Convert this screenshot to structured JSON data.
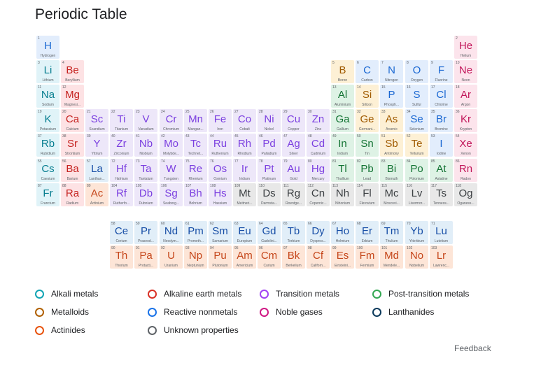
{
  "title": "Periodic Table",
  "feedback": "Feedback",
  "categories": {
    "alkali": {
      "label": "Alkali metals",
      "bg": "#e0f3f8",
      "text": "#067d8f",
      "ring": "#12a4b4"
    },
    "alkaline": {
      "label": "Alkaline earth metals",
      "bg": "#fde2e4",
      "text": "#c5221f",
      "ring": "#d93025"
    },
    "transition": {
      "label": "Transition metals",
      "bg": "#ede7f9",
      "text": "#7b3fe0",
      "ring": "#a142f4"
    },
    "post": {
      "label": "Post-transition metals",
      "bg": "#def2e5",
      "text": "#137333",
      "ring": "#34a853"
    },
    "metalloid": {
      "label": "Metalloids",
      "bg": "#fdf0d5",
      "text": "#a05a00",
      "ring": "#b06000"
    },
    "nonmetal": {
      "label": "Reactive nonmetals",
      "bg": "#e2edfc",
      "text": "#1967d2",
      "ring": "#1a73e8"
    },
    "noble": {
      "label": "Noble gases",
      "bg": "#fce4ec",
      "text": "#c2185b",
      "ring": "#d01884"
    },
    "lanthanide": {
      "label": "Lanthanides",
      "bg": "#e1eef8",
      "text": "#174ea6",
      "ring": "#0b3a5c"
    },
    "actinide": {
      "label": "Actinides",
      "bg": "#fde5d7",
      "text": "#c5461a",
      "ring": "#e8530e"
    },
    "unknown": {
      "label": "Unknown properties",
      "bg": "#e8e8e8",
      "text": "#3c4043",
      "ring": "#5f6368"
    }
  },
  "legend_order": [
    "alkali",
    "alkaline",
    "transition",
    "post",
    "metalloid",
    "nonmetal",
    "noble",
    "lanthanide",
    "actinide",
    "unknown"
  ],
  "elements": [
    {
      "n": 1,
      "s": "H",
      "name": "Hydrogen",
      "c": "nonmetal",
      "col": 1,
      "row": 1
    },
    {
      "n": 2,
      "s": "He",
      "name": "Helium",
      "c": "noble",
      "col": 18,
      "row": 1
    },
    {
      "n": 3,
      "s": "Li",
      "name": "Lithium",
      "c": "alkali",
      "col": 1,
      "row": 2
    },
    {
      "n": 4,
      "s": "Be",
      "name": "Beryllium",
      "c": "alkaline",
      "col": 2,
      "row": 2
    },
    {
      "n": 5,
      "s": "B",
      "name": "Boron",
      "c": "metalloid",
      "col": 13,
      "row": 2
    },
    {
      "n": 6,
      "s": "C",
      "name": "Carbon",
      "c": "nonmetal",
      "col": 14,
      "row": 2
    },
    {
      "n": 7,
      "s": "N",
      "name": "Nitrogen",
      "c": "nonmetal",
      "col": 15,
      "row": 2
    },
    {
      "n": 8,
      "s": "O",
      "name": "Oxygen",
      "c": "nonmetal",
      "col": 16,
      "row": 2
    },
    {
      "n": 9,
      "s": "F",
      "name": "Fluorine",
      "c": "nonmetal",
      "col": 17,
      "row": 2
    },
    {
      "n": 10,
      "s": "Ne",
      "name": "Neon",
      "c": "noble",
      "col": 18,
      "row": 2
    },
    {
      "n": 11,
      "s": "Na",
      "name": "Sodium",
      "c": "alkali",
      "col": 1,
      "row": 3
    },
    {
      "n": 12,
      "s": "Mg",
      "name": "Magnesi...",
      "c": "alkaline",
      "col": 2,
      "row": 3
    },
    {
      "n": 13,
      "s": "Al",
      "name": "Aluminium",
      "c": "post",
      "col": 13,
      "row": 3
    },
    {
      "n": 14,
      "s": "Si",
      "name": "Silicon",
      "c": "metalloid",
      "col": 14,
      "row": 3
    },
    {
      "n": 15,
      "s": "P",
      "name": "Phosph...",
      "c": "nonmetal",
      "col": 15,
      "row": 3
    },
    {
      "n": 16,
      "s": "S",
      "name": "Sulfur",
      "c": "nonmetal",
      "col": 16,
      "row": 3
    },
    {
      "n": 17,
      "s": "Cl",
      "name": "Chlorine",
      "c": "nonmetal",
      "col": 17,
      "row": 3
    },
    {
      "n": 18,
      "s": "Ar",
      "name": "Argon",
      "c": "noble",
      "col": 18,
      "row": 3
    },
    {
      "n": 19,
      "s": "K",
      "name": "Potassium",
      "c": "alkali",
      "col": 1,
      "row": 4
    },
    {
      "n": 20,
      "s": "Ca",
      "name": "Calcium",
      "c": "alkaline",
      "col": 2,
      "row": 4
    },
    {
      "n": 21,
      "s": "Sc",
      "name": "Scandium",
      "c": "transition",
      "col": 3,
      "row": 4
    },
    {
      "n": 22,
      "s": "Ti",
      "name": "Titanium",
      "c": "transition",
      "col": 4,
      "row": 4
    },
    {
      "n": 23,
      "s": "V",
      "name": "Vanadium",
      "c": "transition",
      "col": 5,
      "row": 4
    },
    {
      "n": 24,
      "s": "Cr",
      "name": "Chromium",
      "c": "transition",
      "col": 6,
      "row": 4
    },
    {
      "n": 25,
      "s": "Mn",
      "name": "Mangan...",
      "c": "transition",
      "col": 7,
      "row": 4
    },
    {
      "n": 26,
      "s": "Fe",
      "name": "Iron",
      "c": "transition",
      "col": 8,
      "row": 4
    },
    {
      "n": 27,
      "s": "Co",
      "name": "Cobalt",
      "c": "transition",
      "col": 9,
      "row": 4
    },
    {
      "n": 28,
      "s": "Ni",
      "name": "Nickel",
      "c": "transition",
      "col": 10,
      "row": 4
    },
    {
      "n": 29,
      "s": "Cu",
      "name": "Copper",
      "c": "transition",
      "col": 11,
      "row": 4
    },
    {
      "n": 30,
      "s": "Zn",
      "name": "Zinc",
      "c": "transition",
      "col": 12,
      "row": 4
    },
    {
      "n": 31,
      "s": "Ga",
      "name": "Gallium",
      "c": "post",
      "col": 13,
      "row": 4
    },
    {
      "n": 32,
      "s": "Ge",
      "name": "Germani...",
      "c": "metalloid",
      "col": 14,
      "row": 4
    },
    {
      "n": 33,
      "s": "As",
      "name": "Arsenic",
      "c": "metalloid",
      "col": 15,
      "row": 4
    },
    {
      "n": 34,
      "s": "Se",
      "name": "Selenium",
      "c": "nonmetal",
      "col": 16,
      "row": 4
    },
    {
      "n": 35,
      "s": "Br",
      "name": "Bromine",
      "c": "nonmetal",
      "col": 17,
      "row": 4
    },
    {
      "n": 36,
      "s": "Kr",
      "name": "Krypton",
      "c": "noble",
      "col": 18,
      "row": 4
    },
    {
      "n": 37,
      "s": "Rb",
      "name": "Rubidium",
      "c": "alkali",
      "col": 1,
      "row": 5
    },
    {
      "n": 38,
      "s": "Sr",
      "name": "Strontium",
      "c": "alkaline",
      "col": 2,
      "row": 5
    },
    {
      "n": 39,
      "s": "Y",
      "name": "Yttrium",
      "c": "transition",
      "col": 3,
      "row": 5
    },
    {
      "n": 40,
      "s": "Zr",
      "name": "Zirconium",
      "c": "transition",
      "col": 4,
      "row": 5
    },
    {
      "n": 41,
      "s": "Nb",
      "name": "Niobium",
      "c": "transition",
      "col": 5,
      "row": 5
    },
    {
      "n": 42,
      "s": "Mo",
      "name": "Molybde...",
      "c": "transition",
      "col": 6,
      "row": 5
    },
    {
      "n": 43,
      "s": "Tc",
      "name": "Technet...",
      "c": "transition",
      "col": 7,
      "row": 5
    },
    {
      "n": 44,
      "s": "Ru",
      "name": "Ruthenium",
      "c": "transition",
      "col": 8,
      "row": 5
    },
    {
      "n": 45,
      "s": "Rh",
      "name": "Rhodium",
      "c": "transition",
      "col": 9,
      "row": 5
    },
    {
      "n": 46,
      "s": "Pd",
      "name": "Palladium",
      "c": "transition",
      "col": 10,
      "row": 5
    },
    {
      "n": 47,
      "s": "Ag",
      "name": "Silver",
      "c": "transition",
      "col": 11,
      "row": 5
    },
    {
      "n": 48,
      "s": "Cd",
      "name": "Cadmium",
      "c": "transition",
      "col": 12,
      "row": 5
    },
    {
      "n": 49,
      "s": "In",
      "name": "Indium",
      "c": "post",
      "col": 13,
      "row": 5
    },
    {
      "n": 50,
      "s": "Sn",
      "name": "Tin",
      "c": "post",
      "col": 14,
      "row": 5
    },
    {
      "n": 51,
      "s": "Sb",
      "name": "Antimony",
      "c": "metalloid",
      "col": 15,
      "row": 5
    },
    {
      "n": 52,
      "s": "Te",
      "name": "Tellurium",
      "c": "metalloid",
      "col": 16,
      "row": 5
    },
    {
      "n": 53,
      "s": "I",
      "name": "Iodine",
      "c": "nonmetal",
      "col": 17,
      "row": 5
    },
    {
      "n": 54,
      "s": "Xe",
      "name": "Xenon",
      "c": "noble",
      "col": 18,
      "row": 5
    },
    {
      "n": 55,
      "s": "Cs",
      "name": "Caesium",
      "c": "alkali",
      "col": 1,
      "row": 6
    },
    {
      "n": 56,
      "s": "Ba",
      "name": "Barium",
      "c": "alkaline",
      "col": 2,
      "row": 6
    },
    {
      "n": 57,
      "s": "La",
      "name": "Lanthan...",
      "c": "lanthanide",
      "col": 3,
      "row": 6
    },
    {
      "n": 72,
      "s": "Hf",
      "name": "Hafnium",
      "c": "transition",
      "col": 4,
      "row": 6
    },
    {
      "n": 73,
      "s": "Ta",
      "name": "Tantalum",
      "c": "transition",
      "col": 5,
      "row": 6
    },
    {
      "n": 74,
      "s": "W",
      "name": "Tungsten",
      "c": "transition",
      "col": 6,
      "row": 6
    },
    {
      "n": 75,
      "s": "Re",
      "name": "Rhenium",
      "c": "transition",
      "col": 7,
      "row": 6
    },
    {
      "n": 76,
      "s": "Os",
      "name": "Osmium",
      "c": "transition",
      "col": 8,
      "row": 6
    },
    {
      "n": 77,
      "s": "Ir",
      "name": "Iridium",
      "c": "transition",
      "col": 9,
      "row": 6
    },
    {
      "n": 78,
      "s": "Pt",
      "name": "Platinum",
      "c": "transition",
      "col": 10,
      "row": 6
    },
    {
      "n": 79,
      "s": "Au",
      "name": "Gold",
      "c": "transition",
      "col": 11,
      "row": 6
    },
    {
      "n": 80,
      "s": "Hg",
      "name": "Mercury",
      "c": "transition",
      "col": 12,
      "row": 6
    },
    {
      "n": 81,
      "s": "Tl",
      "name": "Thallium",
      "c": "post",
      "col": 13,
      "row": 6
    },
    {
      "n": 82,
      "s": "Pb",
      "name": "Lead",
      "c": "post",
      "col": 14,
      "row": 6
    },
    {
      "n": 83,
      "s": "Bi",
      "name": "Bismuth",
      "c": "post",
      "col": 15,
      "row": 6
    },
    {
      "n": 84,
      "s": "Po",
      "name": "Polonium",
      "c": "post",
      "col": 16,
      "row": 6
    },
    {
      "n": 85,
      "s": "At",
      "name": "Astatine",
      "c": "post",
      "col": 17,
      "row": 6
    },
    {
      "n": 86,
      "s": "Rn",
      "name": "Radon",
      "c": "noble",
      "col": 18,
      "row": 6
    },
    {
      "n": 87,
      "s": "Fr",
      "name": "Francium",
      "c": "alkali",
      "col": 1,
      "row": 7
    },
    {
      "n": 88,
      "s": "Ra",
      "name": "Radium",
      "c": "alkaline",
      "col": 2,
      "row": 7
    },
    {
      "n": 89,
      "s": "Ac",
      "name": "Actinium",
      "c": "actinide",
      "col": 3,
      "row": 7
    },
    {
      "n": 104,
      "s": "Rf",
      "name": "Rutherfo...",
      "c": "transition",
      "col": 4,
      "row": 7
    },
    {
      "n": 105,
      "s": "Db",
      "name": "Dubnium",
      "c": "transition",
      "col": 5,
      "row": 7
    },
    {
      "n": 106,
      "s": "Sg",
      "name": "Seaborg...",
      "c": "transition",
      "col": 6,
      "row": 7
    },
    {
      "n": 107,
      "s": "Bh",
      "name": "Bohrium",
      "c": "transition",
      "col": 7,
      "row": 7
    },
    {
      "n": 108,
      "s": "Hs",
      "name": "Hassium",
      "c": "transition",
      "col": 8,
      "row": 7
    },
    {
      "n": 109,
      "s": "Mt",
      "name": "Meitneri...",
      "c": "unknown",
      "col": 9,
      "row": 7
    },
    {
      "n": 110,
      "s": "Ds",
      "name": "Darmsta...",
      "c": "unknown",
      "col": 10,
      "row": 7
    },
    {
      "n": 111,
      "s": "Rg",
      "name": "Roentge...",
      "c": "unknown",
      "col": 11,
      "row": 7
    },
    {
      "n": 112,
      "s": "Cn",
      "name": "Copernic...",
      "c": "unknown",
      "col": 12,
      "row": 7
    },
    {
      "n": 113,
      "s": "Nh",
      "name": "Nihonium",
      "c": "unknown",
      "col": 13,
      "row": 7
    },
    {
      "n": 114,
      "s": "Fl",
      "name": "Flerovium",
      "c": "unknown",
      "col": 14,
      "row": 7
    },
    {
      "n": 115,
      "s": "Mc",
      "name": "Moscovi...",
      "c": "unknown",
      "col": 15,
      "row": 7
    },
    {
      "n": 116,
      "s": "Lv",
      "name": "Livermor...",
      "c": "unknown",
      "col": 16,
      "row": 7
    },
    {
      "n": 117,
      "s": "Ts",
      "name": "Tenness...",
      "c": "unknown",
      "col": 17,
      "row": 7
    },
    {
      "n": 118,
      "s": "Og",
      "name": "Oganess...",
      "c": "unknown",
      "col": 18,
      "row": 7
    },
    {
      "n": 58,
      "s": "Ce",
      "name": "Cerium",
      "c": "lanthanide",
      "col": 4,
      "row": 9
    },
    {
      "n": 59,
      "s": "Pr",
      "name": "Praseod...",
      "c": "lanthanide",
      "col": 5,
      "row": 9
    },
    {
      "n": 60,
      "s": "Nd",
      "name": "Neodym...",
      "c": "lanthanide",
      "col": 6,
      "row": 9
    },
    {
      "n": 61,
      "s": "Pm",
      "name": "Prometh...",
      "c": "lanthanide",
      "col": 7,
      "row": 9
    },
    {
      "n": 62,
      "s": "Sm",
      "name": "Samarium",
      "c": "lanthanide",
      "col": 8,
      "row": 9
    },
    {
      "n": 63,
      "s": "Eu",
      "name": "Europium",
      "c": "lanthanide",
      "col": 9,
      "row": 9
    },
    {
      "n": 64,
      "s": "Gd",
      "name": "Gadolini...",
      "c": "lanthanide",
      "col": 10,
      "row": 9
    },
    {
      "n": 65,
      "s": "Tb",
      "name": "Terbium",
      "c": "lanthanide",
      "col": 11,
      "row": 9
    },
    {
      "n": 66,
      "s": "Dy",
      "name": "Dyspros...",
      "c": "lanthanide",
      "col": 12,
      "row": 9
    },
    {
      "n": 67,
      "s": "Ho",
      "name": "Holmium",
      "c": "lanthanide",
      "col": 13,
      "row": 9
    },
    {
      "n": 68,
      "s": "Er",
      "name": "Erbium",
      "c": "lanthanide",
      "col": 14,
      "row": 9
    },
    {
      "n": 69,
      "s": "Tm",
      "name": "Thulium",
      "c": "lanthanide",
      "col": 15,
      "row": 9
    },
    {
      "n": 70,
      "s": "Yb",
      "name": "Ytterbium",
      "c": "lanthanide",
      "col": 16,
      "row": 9
    },
    {
      "n": 71,
      "s": "Lu",
      "name": "Lutetium",
      "c": "lanthanide",
      "col": 17,
      "row": 9
    },
    {
      "n": 90,
      "s": "Th",
      "name": "Thorium",
      "c": "actinide",
      "col": 4,
      "row": 10
    },
    {
      "n": 91,
      "s": "Pa",
      "name": "Protacti...",
      "c": "actinide",
      "col": 5,
      "row": 10
    },
    {
      "n": 92,
      "s": "U",
      "name": "Uranium",
      "c": "actinide",
      "col": 6,
      "row": 10
    },
    {
      "n": 93,
      "s": "Np",
      "name": "Neptunium",
      "c": "actinide",
      "col": 7,
      "row": 10
    },
    {
      "n": 94,
      "s": "Pu",
      "name": "Plutonium",
      "c": "actinide",
      "col": 8,
      "row": 10
    },
    {
      "n": 95,
      "s": "Am",
      "name": "Americium",
      "c": "actinide",
      "col": 9,
      "row": 10
    },
    {
      "n": 96,
      "s": "Cm",
      "name": "Curium",
      "c": "actinide",
      "col": 10,
      "row": 10
    },
    {
      "n": 97,
      "s": "Bk",
      "name": "Berkelium",
      "c": "actinide",
      "col": 11,
      "row": 10
    },
    {
      "n": 98,
      "s": "Cf",
      "name": "Californ...",
      "c": "actinide",
      "col": 12,
      "row": 10
    },
    {
      "n": 99,
      "s": "Es",
      "name": "Einsteini...",
      "c": "actinide",
      "col": 13,
      "row": 10
    },
    {
      "n": 100,
      "s": "Fm",
      "name": "Fermium",
      "c": "actinide",
      "col": 14,
      "row": 10
    },
    {
      "n": 101,
      "s": "Md",
      "name": "Mendele...",
      "c": "actinide",
      "col": 15,
      "row": 10
    },
    {
      "n": 102,
      "s": "No",
      "name": "Nobelium",
      "c": "actinide",
      "col": 16,
      "row": 10
    },
    {
      "n": 103,
      "s": "Lr",
      "name": "Lawrenc...",
      "c": "actinide",
      "col": 17,
      "row": 10
    }
  ]
}
